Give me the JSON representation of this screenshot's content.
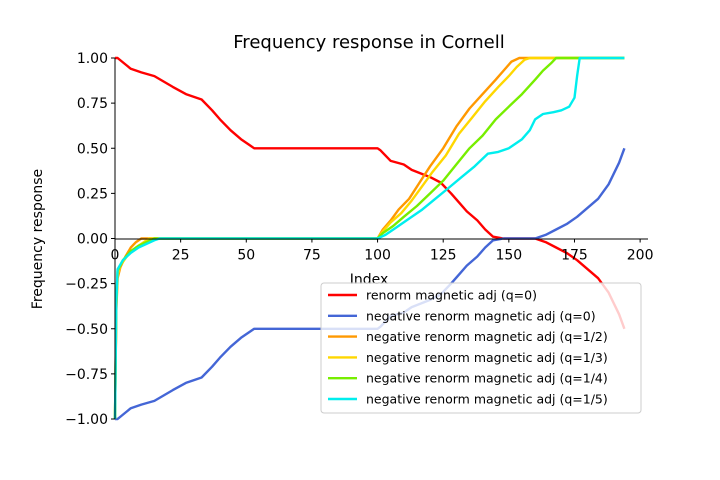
{
  "chart_data": {
    "type": "line",
    "title": "Frequency response in Cornell",
    "xlabel": "Index",
    "ylabel": "Frequency response",
    "xlim": [
      0,
      203
    ],
    "ylim": [
      -1.0,
      1.0
    ],
    "xticks": [
      0,
      25,
      50,
      75,
      100,
      125,
      150,
      175,
      200
    ],
    "yticks": [
      -1.0,
      -0.75,
      -0.5,
      -0.25,
      0.0,
      0.25,
      0.5,
      0.75,
      1.0
    ],
    "xtick_labels": [
      "0",
      "25",
      "50",
      "75",
      "100",
      "125",
      "150",
      "175",
      "200"
    ],
    "ytick_labels": [
      "−1.00",
      "−0.75",
      "−0.50",
      "−0.25",
      "0.00",
      "0.25",
      "0.50",
      "0.75",
      "1.00"
    ],
    "grid": false,
    "spines": "left-bottom-at-zero",
    "legend_position": "lower-right",
    "series": [
      {
        "name": "renorm magnetic adj (q=0)",
        "color": "#ff0000",
        "x": [
          0,
          1,
          6,
          10,
          15,
          22,
          27,
          33,
          37,
          40,
          44,
          48,
          51,
          53,
          60,
          70,
          80,
          90,
          100,
          101,
          105,
          110,
          113,
          120,
          124,
          128,
          131,
          134,
          138,
          141,
          144,
          148,
          152,
          156,
          160,
          164,
          168,
          172,
          176,
          180,
          184,
          188,
          192,
          194
        ],
        "y": [
          1.0,
          1.0,
          0.94,
          0.92,
          0.9,
          0.84,
          0.8,
          0.77,
          0.71,
          0.66,
          0.6,
          0.55,
          0.52,
          0.5,
          0.5,
          0.5,
          0.5,
          0.5,
          0.5,
          0.49,
          0.43,
          0.41,
          0.38,
          0.34,
          0.31,
          0.25,
          0.2,
          0.15,
          0.1,
          0.05,
          0.01,
          0.0,
          0.0,
          0.0,
          0.0,
          -0.02,
          -0.05,
          -0.08,
          -0.12,
          -0.17,
          -0.22,
          -0.3,
          -0.42,
          -0.5
        ]
      },
      {
        "name": "negative renorm magnetic adj (q=0)",
        "color": "#4466d6",
        "x": [
          0,
          1,
          6,
          10,
          15,
          22,
          27,
          33,
          37,
          40,
          44,
          48,
          51,
          53,
          60,
          70,
          80,
          90,
          100,
          101,
          105,
          110,
          113,
          120,
          124,
          128,
          131,
          134,
          138,
          141,
          144,
          148,
          152,
          156,
          160,
          164,
          168,
          172,
          176,
          180,
          184,
          188,
          192,
          194
        ],
        "y": [
          -1.0,
          -1.0,
          -0.94,
          -0.92,
          -0.9,
          -0.84,
          -0.8,
          -0.77,
          -0.71,
          -0.66,
          -0.6,
          -0.55,
          -0.52,
          -0.5,
          -0.5,
          -0.5,
          -0.5,
          -0.5,
          -0.5,
          -0.49,
          -0.43,
          -0.41,
          -0.38,
          -0.34,
          -0.31,
          -0.25,
          -0.2,
          -0.15,
          -0.1,
          -0.05,
          -0.01,
          0.0,
          0.0,
          0.0,
          0.0,
          0.02,
          0.05,
          0.08,
          0.12,
          0.17,
          0.22,
          0.3,
          0.42,
          0.5
        ]
      },
      {
        "name": "negative renorm magnetic adj (q=1/2)",
        "color": "#ff9900",
        "x": [
          0,
          0.5,
          1,
          2,
          4,
          6,
          8,
          10,
          100,
          102,
          105,
          108,
          112,
          116,
          120,
          125,
          130,
          135,
          140,
          145,
          148,
          151,
          154,
          156,
          158,
          160,
          170,
          180,
          190,
          194
        ],
        "y": [
          -1.0,
          -0.4,
          -0.22,
          -0.16,
          -0.1,
          -0.05,
          -0.02,
          0.0,
          0.0,
          0.05,
          0.1,
          0.16,
          0.22,
          0.31,
          0.4,
          0.5,
          0.62,
          0.72,
          0.8,
          0.88,
          0.93,
          0.98,
          1.0,
          1.0,
          1.0,
          1.0,
          1.0,
          1.0,
          1.0,
          1.0
        ]
      },
      {
        "name": "negative renorm magnetic adj (q=1/3)",
        "color": "#ffd700",
        "x": [
          0,
          0.5,
          1,
          2,
          5,
          8,
          11,
          13,
          100,
          102,
          105,
          109,
          113,
          117,
          121,
          126,
          131,
          136,
          141,
          146,
          150,
          153,
          156,
          158,
          160,
          170,
          180,
          190,
          194
        ],
        "y": [
          -1.0,
          -0.38,
          -0.2,
          -0.15,
          -0.09,
          -0.05,
          -0.02,
          0.0,
          0.0,
          0.04,
          0.09,
          0.14,
          0.21,
          0.29,
          0.37,
          0.46,
          0.58,
          0.67,
          0.76,
          0.84,
          0.9,
          0.95,
          0.99,
          1.0,
          1.0,
          1.0,
          1.0,
          1.0,
          1.0
        ]
      },
      {
        "name": "negative renorm magnetic adj (q=1/4)",
        "color": "#77ee00",
        "x": [
          0,
          0.5,
          1,
          3,
          6,
          9,
          12,
          15,
          100,
          102,
          106,
          110,
          115,
          120,
          125,
          130,
          135,
          140,
          145,
          150,
          155,
          160,
          163,
          166,
          168,
          170,
          180,
          190,
          194
        ],
        "y": [
          -1.0,
          -0.36,
          -0.18,
          -0.12,
          -0.07,
          -0.04,
          -0.02,
          0.0,
          0.0,
          0.03,
          0.07,
          0.12,
          0.18,
          0.25,
          0.32,
          0.41,
          0.5,
          0.57,
          0.66,
          0.73,
          0.8,
          0.88,
          0.93,
          0.97,
          1.0,
          1.0,
          1.0,
          1.0,
          1.0
        ]
      },
      {
        "name": "negative renorm magnetic adj (q=1/5)",
        "color": "#00eeee",
        "x": [
          0,
          0.5,
          1,
          3,
          6,
          9,
          12,
          15,
          17,
          100,
          103,
          107,
          112,
          117,
          122,
          127,
          132,
          137,
          142,
          146,
          150,
          155,
          158,
          160,
          163,
          167,
          170,
          173,
          175,
          176,
          177,
          180,
          190,
          194
        ],
        "y": [
          -1.0,
          -0.35,
          -0.17,
          -0.12,
          -0.08,
          -0.05,
          -0.03,
          -0.01,
          0.0,
          0.0,
          0.02,
          0.06,
          0.11,
          0.16,
          0.22,
          0.28,
          0.34,
          0.4,
          0.47,
          0.48,
          0.5,
          0.55,
          0.6,
          0.66,
          0.69,
          0.7,
          0.71,
          0.73,
          0.78,
          0.9,
          1.0,
          1.0,
          1.0,
          1.0
        ]
      }
    ]
  }
}
